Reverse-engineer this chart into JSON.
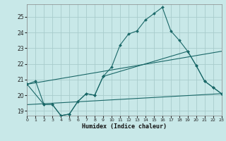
{
  "xlabel": "Humidex (Indice chaleur)",
  "bg_color": "#c8e8e8",
  "grid_color": "#a8cccc",
  "line_color": "#1a6868",
  "xlim": [
    0,
    23
  ],
  "ylim": [
    18.7,
    25.8
  ],
  "yticks": [
    19,
    20,
    21,
    22,
    23,
    24,
    25
  ],
  "xticks": [
    0,
    1,
    2,
    3,
    4,
    5,
    6,
    7,
    8,
    9,
    10,
    11,
    12,
    13,
    14,
    15,
    16,
    17,
    18,
    19,
    20,
    21,
    22,
    23
  ],
  "line1_x": [
    0,
    1,
    2,
    3,
    4,
    5,
    6,
    7,
    8,
    9,
    10,
    11,
    12,
    13,
    14,
    15,
    16,
    17,
    18,
    19,
    20,
    21,
    22,
    23
  ],
  "line1_y": [
    20.7,
    20.9,
    19.4,
    19.4,
    18.7,
    18.8,
    19.6,
    20.1,
    20.0,
    21.2,
    21.8,
    23.2,
    23.9,
    24.1,
    24.8,
    25.2,
    25.6,
    24.1,
    23.5,
    22.8,
    21.9,
    20.9,
    20.5,
    20.1
  ],
  "line2_x": [
    0,
    2,
    3,
    4,
    5,
    6,
    7,
    8,
    9,
    19,
    20,
    21,
    22,
    23
  ],
  "line2_y": [
    20.7,
    19.4,
    19.4,
    18.7,
    18.8,
    19.6,
    20.1,
    20.0,
    21.2,
    22.8,
    21.9,
    20.9,
    20.5,
    20.1
  ],
  "line3_x": [
    0,
    23
  ],
  "line3_y": [
    20.7,
    22.8
  ],
  "line4_x": [
    0,
    23
  ],
  "line4_y": [
    19.4,
    20.1
  ],
  "marker": "D",
  "marker_size": 2.0
}
